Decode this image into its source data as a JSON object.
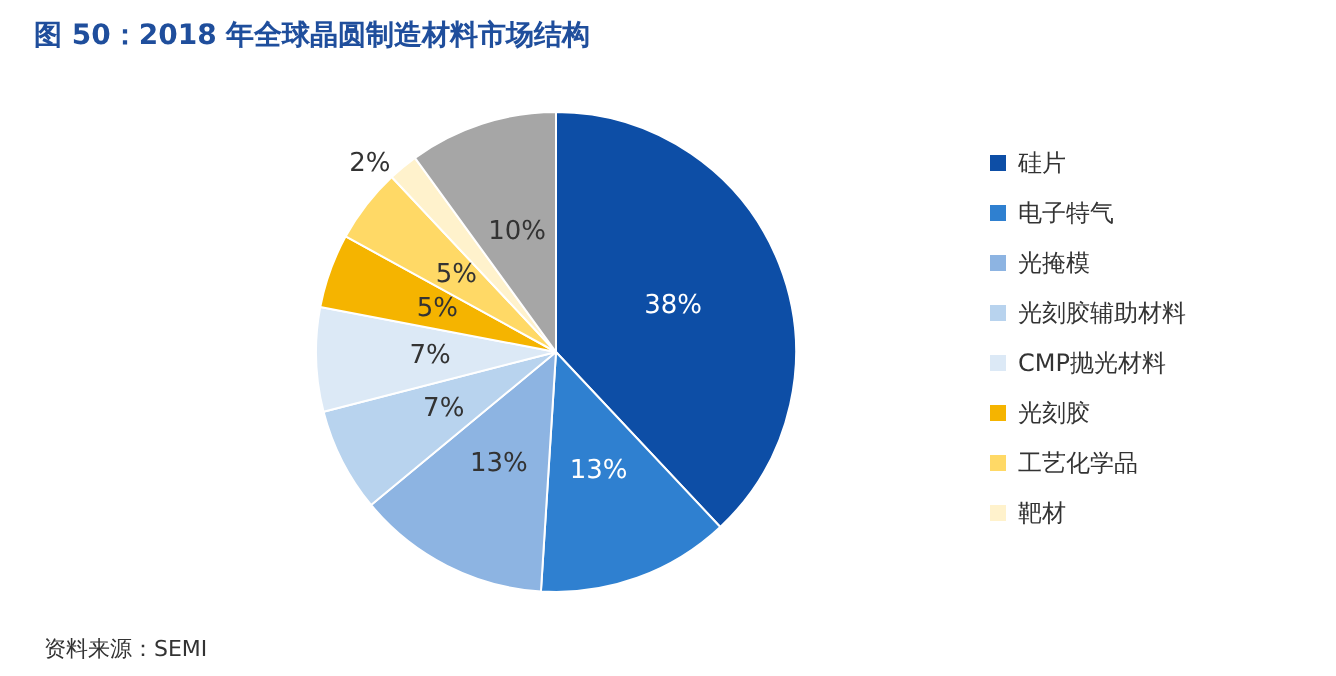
{
  "chart_data": {
    "type": "pie",
    "title": "图 50：2018 年全球晶圆制造材料市场结构",
    "categories": [
      "硅片",
      "电子特气",
      "光掩模",
      "光刻胶辅助材料",
      "CMP抛光材料",
      "光刻胶",
      "工艺化学品",
      "靶材",
      null
    ],
    "values": [
      38,
      13,
      13,
      7,
      7,
      5,
      5,
      2,
      10
    ],
    "value_labels": [
      "38%",
      "13%",
      "13%",
      "7%",
      "7%",
      "5%",
      "5%",
      "2%",
      "10%"
    ],
    "colors": [
      "#0d4ea6",
      "#2f80d0",
      "#8db4e2",
      "#b8d3ee",
      "#dce9f6",
      "#f5b400",
      "#ffd966",
      "#fff2cc",
      "#a6a6a6"
    ],
    "legend": "right",
    "annotations": [
      "资料来源：SEMI"
    ]
  }
}
